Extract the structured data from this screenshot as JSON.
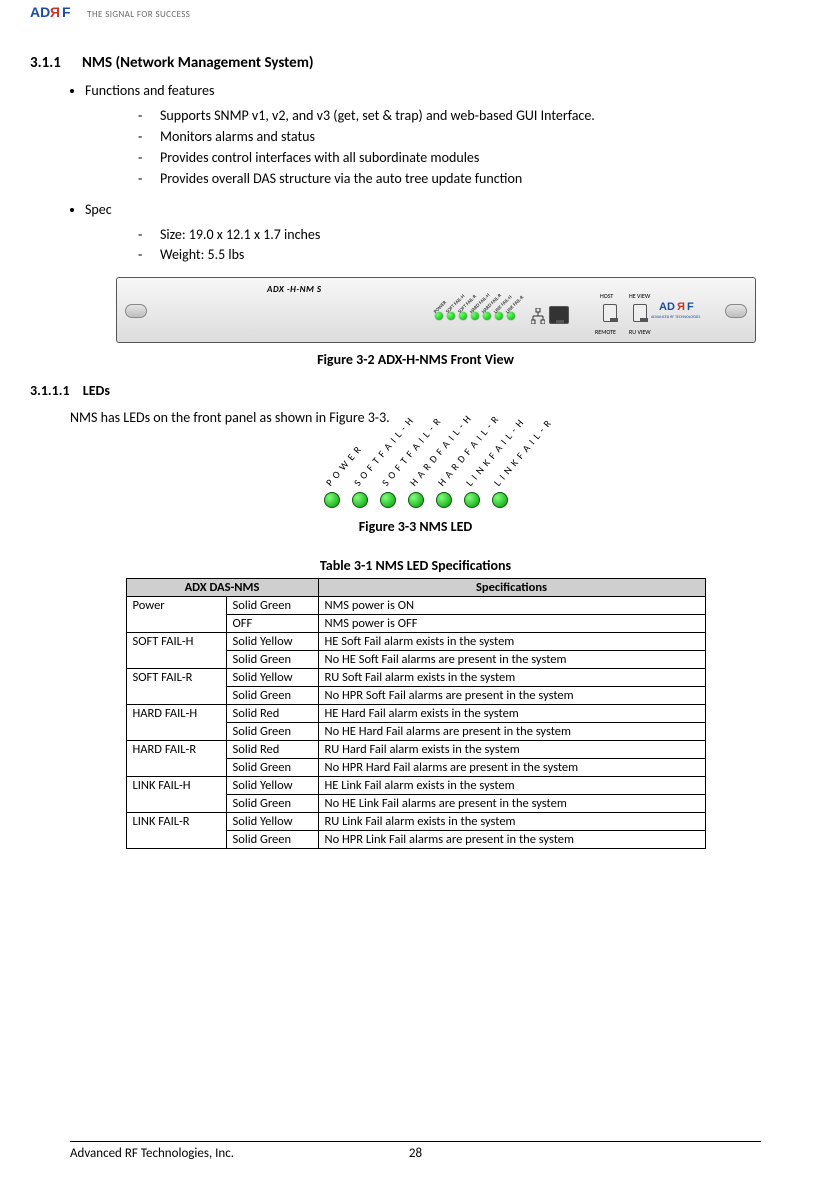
{
  "header": {
    "tagline": "THE SIGNAL FOR SUCCESS",
    "logo_primary": "#1b4ea3",
    "logo_accent": "#c0392b"
  },
  "section": {
    "num": "3.1.1",
    "title": "NMS (Network Management System)"
  },
  "functions_label": "Functions and features",
  "functions": [
    "Supports SNMP v1, v2, and v3 (get, set & trap) and web-based GUI Interface.",
    "Monitors alarms and status",
    "Provides control interfaces with all subordinate modules",
    "Provides overall DAS structure via the auto tree update function"
  ],
  "spec_label": "Spec",
  "specs": [
    "Size: 19.0 x 12.1 x 1.7 inches",
    "Weight: 5.5 lbs"
  ],
  "panel": {
    "label": "ADX -H-NM S",
    "led_labels": [
      "POWER",
      "SOFT FAIL-H",
      "SOFT FAIL-R",
      "HARD FAIL-H",
      "HARD FAIL-R",
      "LINK FAIL-H",
      "LINK FAIL-R"
    ],
    "port_labels": {
      "host": "HOST",
      "heview": "HE VIEW",
      "remote": "REMOTE",
      "ruview": "RU VIEW"
    },
    "led_color": "#00c800"
  },
  "fig32": "Figure 3-2     ADX-H-NMS Front View",
  "subsection": {
    "num": "3.1.1.1",
    "title": "LEDs"
  },
  "leds_intro": "NMS has LEDs on the front panel as shown in Figure 3-3.",
  "led_fig_labels": [
    "POWER",
    "SOFT FAIL-H",
    "SOFT FAIL-R",
    "HARD FAIL-H",
    "HARD FAIL-R",
    "LINK FAIL-H",
    "LINK FAIL-R"
  ],
  "fig33": "Figure 3-3     NMS LED",
  "table_caption": "Table 3-1      NMS LED Specifications",
  "table_head": {
    "c1": "ADX DAS-NMS",
    "c2": "Specifications"
  },
  "table": [
    {
      "label": "Power",
      "rows": [
        {
          "state": "Solid Green",
          "spec": "NMS power is ON"
        },
        {
          "state": "OFF",
          "spec": "NMS power is OFF"
        }
      ]
    },
    {
      "label": "SOFT FAIL-H",
      "rows": [
        {
          "state": "Solid Yellow",
          "spec": "HE Soft Fail alarm exists in the system"
        },
        {
          "state": "Solid Green",
          "spec": "No HE Soft Fail alarms are present in the system"
        }
      ]
    },
    {
      "label": "SOFT FAIL-R",
      "rows": [
        {
          "state": "Solid Yellow",
          "spec": "RU Soft Fail alarm exists in the system"
        },
        {
          "state": "Solid Green",
          "spec": "No HPR Soft Fail alarms are present in the system"
        }
      ]
    },
    {
      "label": "HARD FAIL-H",
      "rows": [
        {
          "state": "Solid Red",
          "spec": "HE Hard Fail alarm exists in the system"
        },
        {
          "state": "Solid Green",
          "spec": "No HE Hard Fail alarms are present in the system"
        }
      ]
    },
    {
      "label": "HARD FAIL-R",
      "rows": [
        {
          "state": "Solid Red",
          "spec": "RU Hard Fail alarm exists in the system"
        },
        {
          "state": "Solid Green",
          "spec": "No HPR Hard Fail alarms are present in the system"
        }
      ]
    },
    {
      "label": "LINK FAIL-H",
      "rows": [
        {
          "state": "Solid Yellow",
          "spec": "HE Link Fail alarm exists in the system"
        },
        {
          "state": "Solid Green",
          "spec": "No HE Link Fail alarms are present in the system"
        }
      ]
    },
    {
      "label": "LINK FAIL-R",
      "rows": [
        {
          "state": "Solid Yellow",
          "spec": "RU Link Fail alarm exists in the system"
        },
        {
          "state": "Solid Green",
          "spec": "No HPR Link Fail alarms are present in the system"
        }
      ]
    }
  ],
  "footer": {
    "company": "Advanced RF Technologies, Inc.",
    "page": "28"
  }
}
